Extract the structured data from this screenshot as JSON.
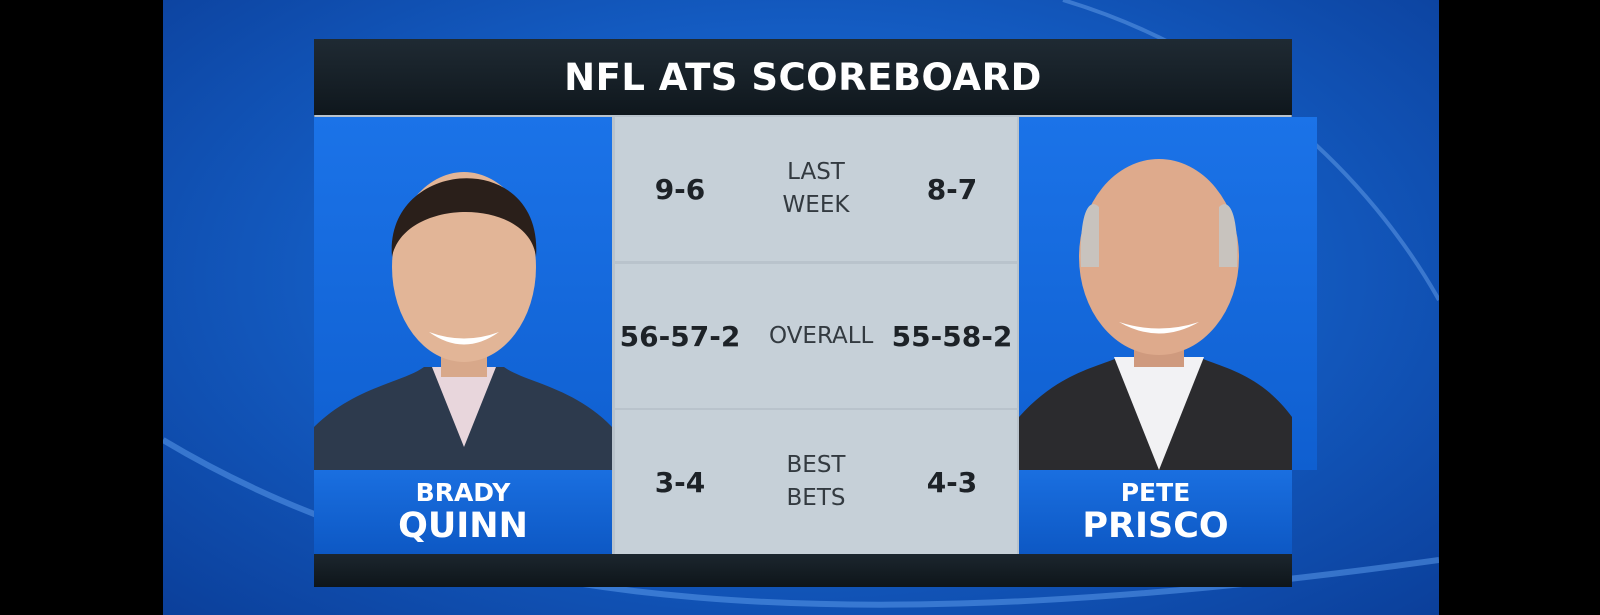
{
  "header": {
    "title": "NFL ATS SCOREBOARD"
  },
  "left_analyst": {
    "first_name": "BRADY",
    "last_name": "QUINN"
  },
  "right_analyst": {
    "first_name": "PETE",
    "last_name": "PRISCO"
  },
  "rows": [
    {
      "left": "9-6",
      "label": "LAST WEEK",
      "right": "8-7"
    },
    {
      "left": "56-57-2",
      "label": "OVERALL",
      "right": "55-58-2"
    },
    {
      "left": "3-4",
      "label": "BEST BETS",
      "right": "4-3"
    }
  ]
}
